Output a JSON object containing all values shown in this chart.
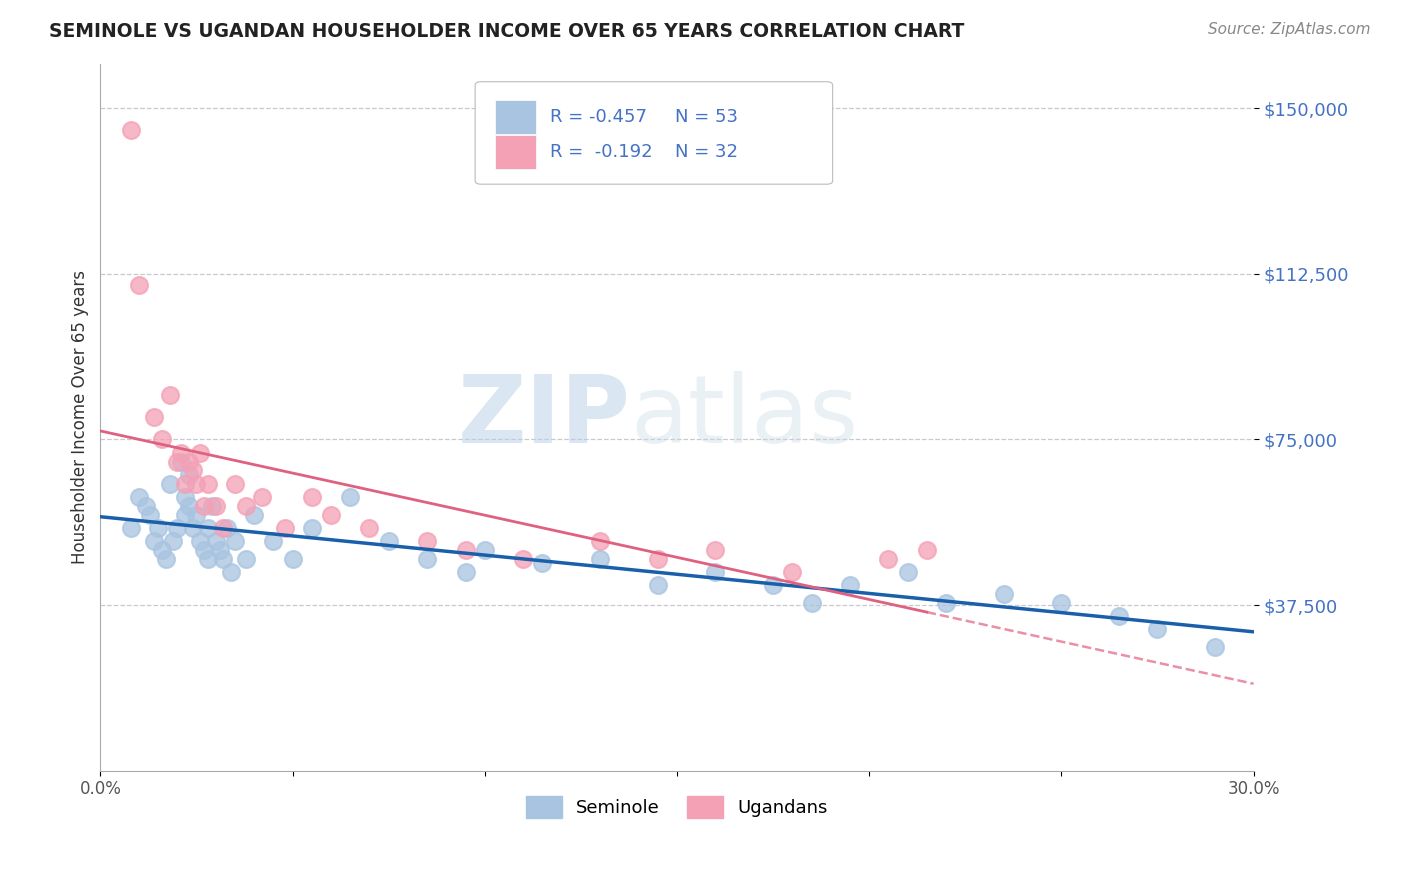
{
  "title": "SEMINOLE VS UGANDAN HOUSEHOLDER INCOME OVER 65 YEARS CORRELATION CHART",
  "source": "Source: ZipAtlas.com",
  "ylabel": "Householder Income Over 65 years",
  "xlim": [
    0.0,
    0.3
  ],
  "ylim": [
    0,
    160000
  ],
  "yticks": [
    37500,
    75000,
    112500,
    150000
  ],
  "ytick_labels": [
    "$37,500",
    "$75,000",
    "$112,500",
    "$150,000"
  ],
  "xticks": [
    0.0,
    0.05,
    0.1,
    0.15,
    0.2,
    0.25,
    0.3
  ],
  "xtick_labels": [
    "0.0%",
    "",
    "",
    "",
    "",
    "",
    "30.0%"
  ],
  "background_color": "#ffffff",
  "grid_color": "#c8c8d0",
  "seminole_color": "#a8c4e0",
  "ugandan_color": "#f4a0b5",
  "seminole_line_color": "#1a5faa",
  "ugandan_line_color": "#e06080",
  "text_color": "#4472c4",
  "legend_R_seminole": "R = -0.457",
  "legend_N_seminole": "N = 53",
  "legend_R_ugandan": "R =  -0.192",
  "legend_N_ugandan": "N = 32",
  "legend_label_seminole": "Seminole",
  "legend_label_ugandan": "Ugandans",
  "seminole_x": [
    0.008,
    0.01,
    0.012,
    0.013,
    0.014,
    0.015,
    0.016,
    0.017,
    0.018,
    0.019,
    0.02,
    0.021,
    0.022,
    0.022,
    0.023,
    0.023,
    0.024,
    0.025,
    0.026,
    0.027,
    0.028,
    0.028,
    0.029,
    0.03,
    0.031,
    0.032,
    0.033,
    0.034,
    0.035,
    0.038,
    0.04,
    0.045,
    0.05,
    0.055,
    0.065,
    0.075,
    0.085,
    0.095,
    0.1,
    0.115,
    0.13,
    0.145,
    0.16,
    0.175,
    0.185,
    0.195,
    0.21,
    0.22,
    0.235,
    0.25,
    0.265,
    0.275,
    0.29
  ],
  "seminole_y": [
    55000,
    62000,
    60000,
    58000,
    52000,
    55000,
    50000,
    48000,
    65000,
    52000,
    55000,
    70000,
    62000,
    58000,
    67000,
    60000,
    55000,
    58000,
    52000,
    50000,
    48000,
    55000,
    60000,
    52000,
    50000,
    48000,
    55000,
    45000,
    52000,
    48000,
    58000,
    52000,
    48000,
    55000,
    62000,
    52000,
    48000,
    45000,
    50000,
    47000,
    48000,
    42000,
    45000,
    42000,
    38000,
    42000,
    45000,
    38000,
    40000,
    38000,
    35000,
    32000,
    28000
  ],
  "ugandan_x": [
    0.008,
    0.01,
    0.014,
    0.016,
    0.018,
    0.02,
    0.021,
    0.022,
    0.023,
    0.024,
    0.025,
    0.026,
    0.027,
    0.028,
    0.03,
    0.032,
    0.035,
    0.038,
    0.042,
    0.048,
    0.055,
    0.06,
    0.07,
    0.085,
    0.095,
    0.11,
    0.13,
    0.145,
    0.16,
    0.18,
    0.205,
    0.215
  ],
  "ugandan_y": [
    145000,
    110000,
    80000,
    75000,
    85000,
    70000,
    72000,
    65000,
    70000,
    68000,
    65000,
    72000,
    60000,
    65000,
    60000,
    55000,
    65000,
    60000,
    62000,
    55000,
    62000,
    58000,
    55000,
    52000,
    50000,
    48000,
    52000,
    48000,
    50000,
    45000,
    48000,
    50000
  ]
}
